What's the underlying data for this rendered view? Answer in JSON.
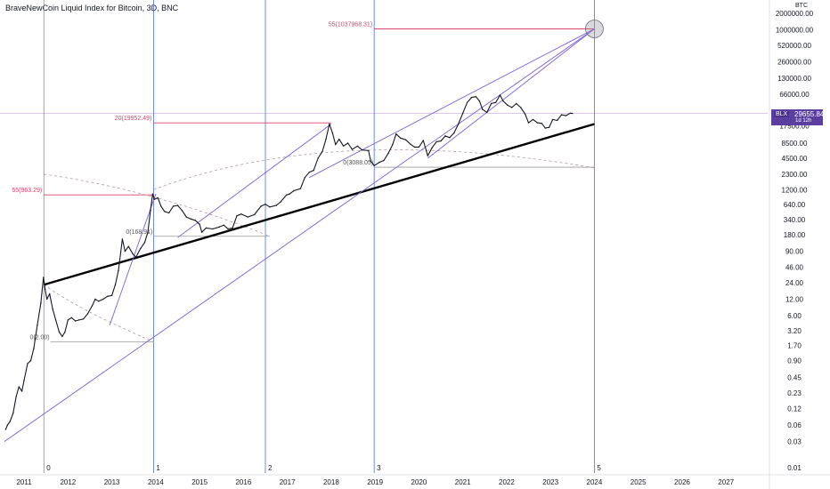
{
  "header": {
    "title": "BraveNewCoin Liquid Index for Bitcoin, 3D, BNC",
    "currency": "BTC"
  },
  "price_badge": {
    "symbol": "BLX",
    "value": "29655.84",
    "countdown": "1d 12h"
  },
  "colors": {
    "vline": "#4a6cf7",
    "purple": "#7b5fd6",
    "pink": "#e0406a",
    "trend": "#000000",
    "candle": "#131722",
    "dashed": "#b09aa0",
    "gray": "#9a9a9a"
  },
  "chart_data": {
    "type": "line",
    "title": "BraveNewCoin Liquid Index for Bitcoin, 3D, BNC",
    "scale": "log",
    "ylim": [
      0.008,
      3500000
    ],
    "xlim": [
      2010.45,
      2027.95
    ],
    "xticks": [
      "2011",
      "2012",
      "2013",
      "2014",
      "2015",
      "2016",
      "2017",
      "2018",
      "2019",
      "2020",
      "2021",
      "2022",
      "2023",
      "2024",
      "2025",
      "2026",
      "2027"
    ],
    "yticks": [
      {
        "label": "2000000.00",
        "v": 2000000
      },
      {
        "label": "1000000.00",
        "v": 1000000
      },
      {
        "label": "520000.00",
        "v": 520000
      },
      {
        "label": "260000.00",
        "v": 260000
      },
      {
        "label": "130000.00",
        "v": 130000
      },
      {
        "label": "66000.00",
        "v": 66000
      },
      {
        "label": "17500.00",
        "v": 17500
      },
      {
        "label": "8500.00",
        "v": 8500
      },
      {
        "label": "4500.00",
        "v": 4500
      },
      {
        "label": "2300.00",
        "v": 2300
      },
      {
        "label": "1200.00",
        "v": 1200
      },
      {
        "label": "640.00",
        "v": 640
      },
      {
        "label": "340.00",
        "v": 340
      },
      {
        "label": "180.00",
        "v": 180
      },
      {
        "label": "90.00",
        "v": 90
      },
      {
        "label": "46.00",
        "v": 46
      },
      {
        "label": "24.00",
        "v": 24
      },
      {
        "label": "12.00",
        "v": 12
      },
      {
        "label": "6.00",
        "v": 6
      },
      {
        "label": "3.20",
        "v": 3.2
      },
      {
        "label": "1.70",
        "v": 1.7
      },
      {
        "label": "0.90",
        "v": 0.9
      },
      {
        "label": "0.45",
        "v": 0.45
      },
      {
        "label": "0.23",
        "v": 0.23
      },
      {
        "label": "0.12",
        "v": 0.12
      },
      {
        "label": "0.06",
        "v": 0.06
      },
      {
        "label": "0.03",
        "v": 0.03
      },
      {
        "label": "0.01",
        "v": 0.01
      }
    ],
    "cycle_lines": [
      {
        "label": "0",
        "x": 2011.45
      },
      {
        "label": "1",
        "x": 2013.95
      },
      {
        "label": "2",
        "x": 2016.5
      },
      {
        "label": "3",
        "x": 2018.98
      },
      {
        "label": "5",
        "x": 2024.0
      }
    ],
    "series": [
      {
        "name": "BLX",
        "points": [
          [
            2010.58,
            0.05
          ],
          [
            2010.62,
            0.06
          ],
          [
            2010.68,
            0.07
          ],
          [
            2010.75,
            0.1
          ],
          [
            2010.82,
            0.2
          ],
          [
            2010.88,
            0.3
          ],
          [
            2010.95,
            0.25
          ],
          [
            2011.0,
            0.4
          ],
          [
            2011.08,
            0.8
          ],
          [
            2011.15,
            0.9
          ],
          [
            2011.22,
            1.5
          ],
          [
            2011.3,
            4
          ],
          [
            2011.38,
            10
          ],
          [
            2011.44,
            30
          ],
          [
            2011.48,
            18
          ],
          [
            2011.52,
            12
          ],
          [
            2011.58,
            15
          ],
          [
            2011.65,
            8
          ],
          [
            2011.72,
            5
          ],
          [
            2011.8,
            3
          ],
          [
            2011.87,
            2.5
          ],
          [
            2011.93,
            3
          ],
          [
            2012.0,
            5
          ],
          [
            2012.08,
            5.5
          ],
          [
            2012.17,
            4.8
          ],
          [
            2012.25,
            5
          ],
          [
            2012.35,
            5.2
          ],
          [
            2012.45,
            6.5
          ],
          [
            2012.55,
            9
          ],
          [
            2012.62,
            12
          ],
          [
            2012.7,
            11
          ],
          [
            2012.8,
            12
          ],
          [
            2012.9,
            13.5
          ],
          [
            2013.0,
            14
          ],
          [
            2013.08,
            22
          ],
          [
            2013.15,
            40
          ],
          [
            2013.24,
            150
          ],
          [
            2013.3,
            90
          ],
          [
            2013.38,
            110
          ],
          [
            2013.48,
            80
          ],
          [
            2013.55,
            70
          ],
          [
            2013.65,
            100
          ],
          [
            2013.75,
            130
          ],
          [
            2013.82,
            200
          ],
          [
            2013.88,
            500
          ],
          [
            2013.93,
            1000
          ],
          [
            2013.97,
            800
          ],
          [
            2014.05,
            850
          ],
          [
            2014.12,
            600
          ],
          [
            2014.2,
            480
          ],
          [
            2014.3,
            450
          ],
          [
            2014.4,
            600
          ],
          [
            2014.5,
            620
          ],
          [
            2014.6,
            500
          ],
          [
            2014.7,
            380
          ],
          [
            2014.8,
            350
          ],
          [
            2014.9,
            330
          ],
          [
            2015.0,
            280
          ],
          [
            2015.05,
            200
          ],
          [
            2015.15,
            240
          ],
          [
            2015.3,
            230
          ],
          [
            2015.45,
            250
          ],
          [
            2015.55,
            270
          ],
          [
            2015.65,
            230
          ],
          [
            2015.75,
            240
          ],
          [
            2015.85,
            400
          ],
          [
            2015.95,
            430
          ],
          [
            2016.1,
            380
          ],
          [
            2016.25,
            420
          ],
          [
            2016.4,
            600
          ],
          [
            2016.5,
            650
          ],
          [
            2016.6,
            580
          ],
          [
            2016.75,
            620
          ],
          [
            2016.85,
            720
          ],
          [
            2016.98,
            960
          ],
          [
            2017.05,
            1000
          ],
          [
            2017.15,
            1150
          ],
          [
            2017.3,
            1250
          ],
          [
            2017.4,
            2000
          ],
          [
            2017.5,
            2500
          ],
          [
            2017.6,
            2700
          ],
          [
            2017.7,
            4500
          ],
          [
            2017.8,
            6000
          ],
          [
            2017.88,
            10000
          ],
          [
            2017.96,
            19000
          ],
          [
            2018.03,
            13000
          ],
          [
            2018.1,
            8000
          ],
          [
            2018.18,
            10000
          ],
          [
            2018.28,
            7500
          ],
          [
            2018.38,
            8500
          ],
          [
            2018.48,
            6500
          ],
          [
            2018.6,
            7500
          ],
          [
            2018.7,
            6400
          ],
          [
            2018.85,
            6200
          ],
          [
            2018.9,
            4000
          ],
          [
            2018.98,
            3300
          ],
          [
            2019.1,
            3800
          ],
          [
            2019.2,
            4100
          ],
          [
            2019.3,
            5500
          ],
          [
            2019.4,
            8000
          ],
          [
            2019.48,
            12500
          ],
          [
            2019.58,
            10500
          ],
          [
            2019.7,
            9800
          ],
          [
            2019.8,
            8200
          ],
          [
            2019.9,
            7200
          ],
          [
            2020.0,
            7200
          ],
          [
            2020.1,
            9500
          ],
          [
            2020.2,
            5000
          ],
          [
            2020.3,
            7000
          ],
          [
            2020.4,
            9000
          ],
          [
            2020.5,
            9300
          ],
          [
            2020.6,
            11500
          ],
          [
            2020.7,
            10700
          ],
          [
            2020.8,
            13000
          ],
          [
            2020.9,
            19000
          ],
          [
            2021.0,
            30000
          ],
          [
            2021.1,
            47000
          ],
          [
            2021.2,
            58000
          ],
          [
            2021.3,
            60000
          ],
          [
            2021.38,
            50000
          ],
          [
            2021.45,
            35000
          ],
          [
            2021.55,
            31000
          ],
          [
            2021.65,
            45000
          ],
          [
            2021.75,
            47000
          ],
          [
            2021.85,
            64000
          ],
          [
            2021.92,
            50000
          ],
          [
            2022.02,
            42000
          ],
          [
            2022.12,
            38000
          ],
          [
            2022.22,
            45000
          ],
          [
            2022.32,
            38000
          ],
          [
            2022.42,
            29000
          ],
          [
            2022.5,
            20000
          ],
          [
            2022.6,
            23000
          ],
          [
            2022.7,
            20000
          ],
          [
            2022.8,
            19500
          ],
          [
            2022.88,
            16000
          ],
          [
            2022.97,
            16500
          ],
          [
            2023.05,
            23000
          ],
          [
            2023.15,
            22000
          ],
          [
            2023.25,
            28000
          ],
          [
            2023.35,
            27000
          ],
          [
            2023.45,
            30000
          ],
          [
            2023.5,
            29655
          ]
        ]
      }
    ],
    "fib_levels": [
      {
        "label": "55(1037968.31)",
        "x0": 2018.98,
        "x1": 2024.0,
        "y": 1037968
      },
      {
        "label": "20(19952.49)",
        "x0": 2013.95,
        "x1": 2018.0,
        "y": 19952
      },
      {
        "label": "55(963.29)",
        "x0": 2011.45,
        "x1": 2013.95,
        "y": 963
      }
    ],
    "floor_labels": [
      {
        "label": "0(2.00)",
        "x0": 2011.6,
        "x1": 2013.95,
        "y": 2.0
      },
      {
        "label": "0(168.91)",
        "x0": 2013.95,
        "x1": 2016.6,
        "y": 168.9
      },
      {
        "label": "0(3088.05)",
        "x0": 2018.98,
        "x1": 2024.0,
        "y": 3088
      }
    ],
    "trend_lines": [
      {
        "name": "support",
        "x0": 2011.45,
        "y0": 22,
        "x1": 2024.0,
        "y1": 19000
      },
      {
        "name": "channel-low",
        "x0": 2010.55,
        "y0": 0.03,
        "x1": 2024.0,
        "y1": 1037968
      },
      {
        "name": "cycle-2013",
        "x0": 2012.95,
        "y0": 4,
        "x1": 2014.0,
        "y1": 1000
      },
      {
        "name": "cycle-2017",
        "x0": 2014.5,
        "y0": 160,
        "x1": 2018.0,
        "y1": 19000
      },
      {
        "name": "cycle-2021",
        "x0": 2017.5,
        "y0": 2000,
        "x1": 2024.0,
        "y1": 1037968
      },
      {
        "name": "cycle-2021-low",
        "x0": 2020.2,
        "y0": 4500,
        "x1": 2024.0,
        "y1": 1037968
      }
    ],
    "dashed_arcs": [
      {
        "points": [
          [
            2011.45,
            22
          ],
          [
            2012.2,
            8
          ],
          [
            2013.95,
            2.0
          ]
        ]
      },
      {
        "points": [
          [
            2011.45,
            2300
          ],
          [
            2013.95,
            1200
          ],
          [
            2016.6,
            168.9
          ]
        ]
      },
      {
        "points": [
          [
            2013.95,
            1200
          ],
          [
            2018.0,
            19952
          ],
          [
            2024.0,
            3000
          ]
        ]
      }
    ],
    "target_circle": {
      "x": 2024.0,
      "y": 1037968
    }
  }
}
